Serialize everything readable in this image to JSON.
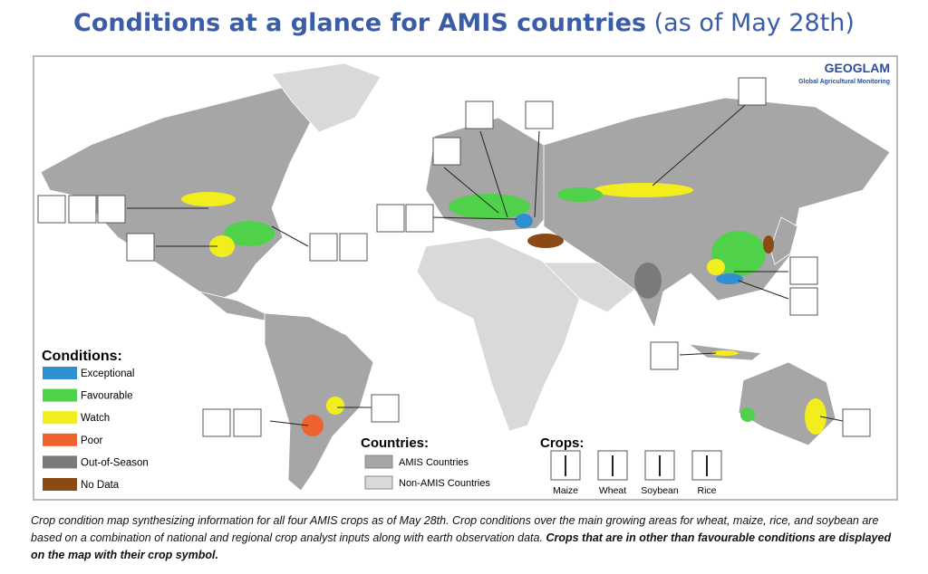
{
  "header": {
    "title": "Conditions at a glance for AMIS countries",
    "subtitle": "(as of May 28th)"
  },
  "logo": {
    "name": "GEOGLAM",
    "tagline": "Global Agricultural Monitoring"
  },
  "legend": {
    "conditions": {
      "title": "Conditions:",
      "items": [
        {
          "label": "Exceptional",
          "color": "#2f8fd1"
        },
        {
          "label": "Favourable",
          "color": "#4fd14a"
        },
        {
          "label": "Watch",
          "color": "#f2ee1e"
        },
        {
          "label": "Poor",
          "color": "#ee6230"
        },
        {
          "label": "Out-of-Season",
          "color": "#7a7a7a"
        },
        {
          "label": "No Data",
          "color": "#8b4a14"
        }
      ]
    },
    "countries": {
      "title": "Countries:",
      "items": [
        {
          "label": "AMIS Countries",
          "color": "#a6a6a6"
        },
        {
          "label": "Non-AMIS Countries",
          "color": "#d9d9d9"
        }
      ]
    },
    "crops": {
      "title": "Crops:",
      "items": [
        "Maize",
        "Wheat",
        "Soybean",
        "Rice"
      ]
    }
  },
  "caption": {
    "text": "Crop condition map synthesizing information for all four AMIS crops as of May 28th. Crop conditions over the main growing areas for wheat, maize, rice, and soybean are based on a combination of national and regional crop analyst inputs along with earth observation data.",
    "emphasis": "Crops that are in other than favourable conditions are displayed on the map with their crop symbol."
  }
}
